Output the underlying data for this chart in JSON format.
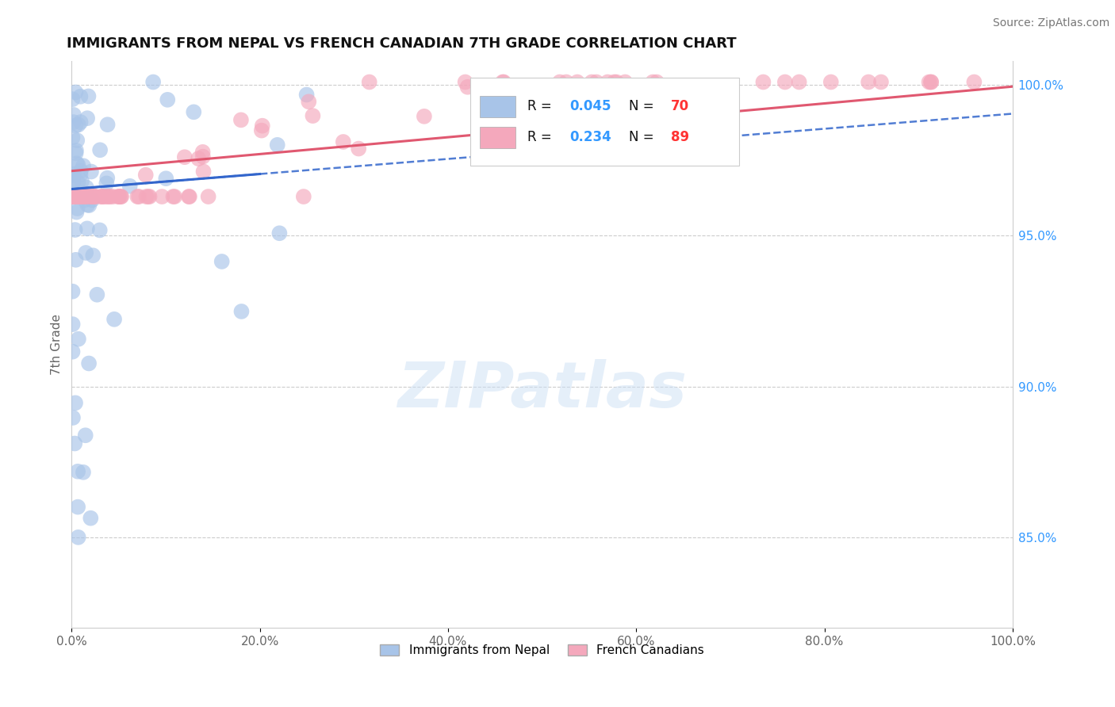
{
  "title": "IMMIGRANTS FROM NEPAL VS FRENCH CANADIAN 7TH GRADE CORRELATION CHART",
  "source": "Source: ZipAtlas.com",
  "ylabel": "7th Grade",
  "legend_label_blue": "Immigrants from Nepal",
  "legend_label_pink": "French Canadians",
  "R_blue": 0.045,
  "N_blue": 70,
  "R_pink": 0.234,
  "N_pink": 89,
  "blue_color": "#a8c4e8",
  "pink_color": "#f4a8bc",
  "trend_blue_color": "#3366cc",
  "trend_pink_color": "#e05870",
  "xlim": [
    0.0,
    1.0
  ],
  "ylim": [
    0.82,
    1.008
  ],
  "right_yticks": [
    0.85,
    0.9,
    0.95,
    1.0
  ],
  "right_yticklabels": [
    "85.0%",
    "90.0%",
    "95.0%",
    "100.0%"
  ],
  "xticklabels": [
    "0.0%",
    "20.0%",
    "40.0%",
    "60.0%",
    "80.0%",
    "100.0%"
  ],
  "nepal_seed": 77,
  "french_seed": 99
}
